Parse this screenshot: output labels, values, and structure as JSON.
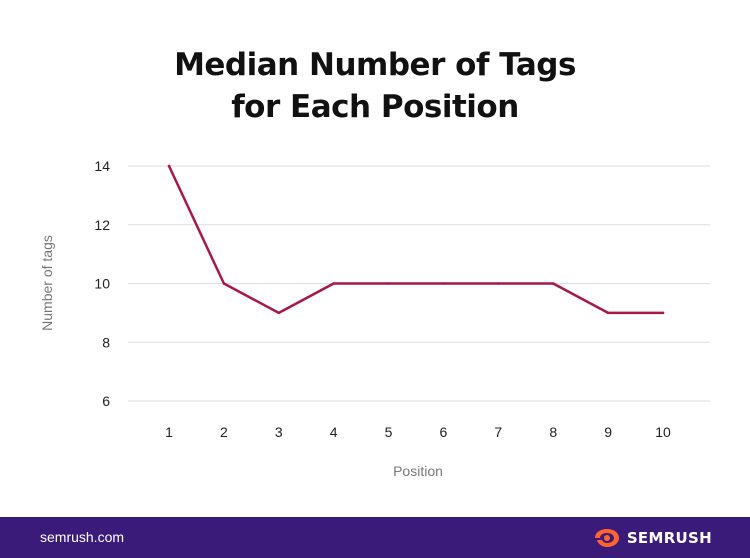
{
  "title_lines": [
    "Median Number of Tags",
    "for Each Position"
  ],
  "footer": {
    "site": "semrush.com",
    "brand": "SEMRUSH",
    "brand_color": "#ff642d",
    "background": "#3b1b7a"
  },
  "chart_data": {
    "type": "line",
    "title": "Median Number of Tags for Each Position",
    "xlabel": "Position",
    "ylabel": "Number of tags",
    "x": [
      1,
      2,
      3,
      4,
      5,
      6,
      7,
      8,
      9,
      10
    ],
    "series": [
      {
        "values": [
          14,
          10,
          9,
          10,
          10,
          10,
          10,
          10,
          9,
          9
        ],
        "color": "#a8174a"
      }
    ],
    "ylim": [
      6,
      14
    ],
    "yticks": [
      6,
      8,
      10,
      12,
      14
    ],
    "xtick_labels": [
      "1",
      "2",
      "3",
      "4",
      "5",
      "6",
      "7",
      "8",
      "9",
      "10"
    ],
    "grid": true
  }
}
